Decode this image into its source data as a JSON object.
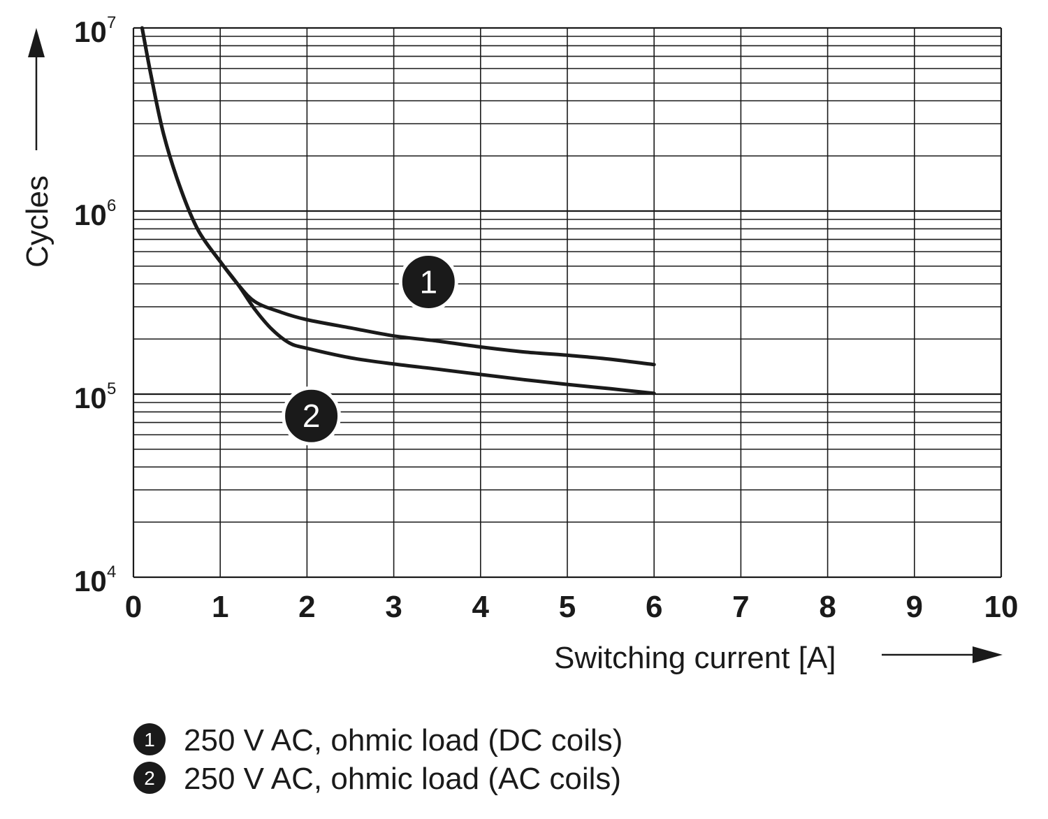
{
  "chart_data": {
    "type": "line",
    "title": "",
    "xlabel": "Switching current [A]",
    "ylabel": "Cycles",
    "xlim": [
      0,
      10
    ],
    "ylim": [
      10000,
      10000000
    ],
    "yscale": "log",
    "grid": true,
    "x_ticks": [
      "0",
      "1",
      "2",
      "3",
      "4",
      "5",
      "6",
      "7",
      "8",
      "9",
      "10"
    ],
    "y_ticks": [
      {
        "base": "10",
        "exp": "4",
        "value": 10000
      },
      {
        "base": "10",
        "exp": "5",
        "value": 100000
      },
      {
        "base": "10",
        "exp": "6",
        "value": 1000000
      },
      {
        "base": "10",
        "exp": "7",
        "value": 10000000
      }
    ],
    "series": [
      {
        "name": "250 V AC, ohmic load (DC coils)",
        "marker": "1",
        "x": [
          0.1,
          0.2,
          0.35,
          0.55,
          0.75,
          1.0,
          1.2,
          1.4,
          1.7,
          2.0,
          2.5,
          3.0,
          3.5,
          4.0,
          4.5,
          5.0,
          5.5,
          6.0
        ],
        "y": [
          10000000,
          5600000,
          2600000,
          1300000,
          780000,
          530000,
          400000,
          320000,
          280000,
          255000,
          230000,
          208000,
          195000,
          181000,
          170000,
          163000,
          155000,
          145000
        ]
      },
      {
        "name": "250 V AC, ohmic load (AC coils)",
        "marker": "2",
        "x": [
          0.1,
          0.2,
          0.35,
          0.55,
          0.75,
          1.0,
          1.2,
          1.4,
          1.6,
          1.8,
          2.0,
          2.5,
          3.0,
          3.5,
          4.0,
          4.5,
          5.0,
          5.5,
          6.0
        ],
        "y": [
          10000000,
          5600000,
          2600000,
          1300000,
          780000,
          530000,
          400000,
          290000,
          225000,
          190000,
          178000,
          158000,
          146000,
          137000,
          128000,
          120000,
          113000,
          107000,
          101000
        ]
      }
    ],
    "legend": [
      {
        "marker": "1",
        "label": "250 V AC, ohmic load (DC coils)"
      },
      {
        "marker": "2",
        "label": "250 V AC, ohmic load (AC coils)"
      }
    ]
  }
}
